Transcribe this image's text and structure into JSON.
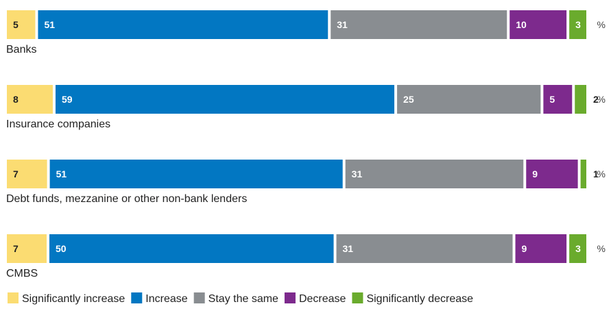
{
  "chart_data": {
    "type": "bar",
    "stacked": true,
    "orientation": "horizontal",
    "unit": "%",
    "categories": [
      "Banks",
      "Insurance companies",
      "Debt funds, mezzanine or other non-bank lenders",
      "CMBS"
    ],
    "series": [
      {
        "name": "Significantly increase",
        "color": "#fbdc72",
        "values": [
          5,
          8,
          7,
          7
        ]
      },
      {
        "name": "Increase",
        "color": "#0277c2",
        "values": [
          51,
          59,
          51,
          50
        ]
      },
      {
        "name": "Stay the same",
        "color": "#898d91",
        "values": [
          31,
          25,
          31,
          31
        ]
      },
      {
        "name": "Decrease",
        "color": "#7d2a8d",
        "values": [
          10,
          5,
          9,
          9
        ]
      },
      {
        "name": "Significantly decrease",
        "color": "#6aab2d",
        "values": [
          3,
          2,
          1,
          3
        ]
      }
    ],
    "legend_position": "bottom",
    "grid": false
  }
}
